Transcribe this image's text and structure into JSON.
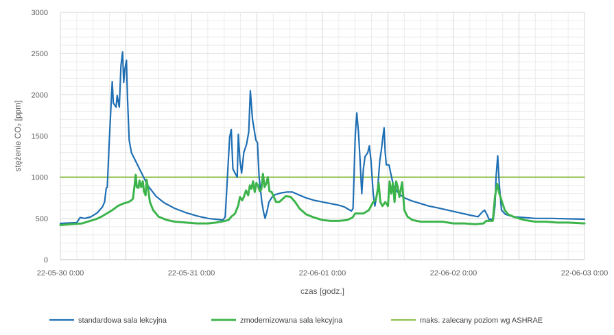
{
  "chart_data": {
    "type": "line",
    "xlabel": "czas [godz.]",
    "ylabel": "stężenie CO₂ [ppm]",
    "ylim": [
      0,
      3000
    ],
    "yticks": [
      0,
      500,
      1000,
      1500,
      2000,
      2500,
      3000
    ],
    "xlim": [
      0,
      96
    ],
    "x_unit": "hours since 22-05-30 0:00",
    "xticks": [
      {
        "x": 0,
        "label": "22-05-30 0:00"
      },
      {
        "x": 24,
        "label": "22-05-31 0:00"
      },
      {
        "x": 48,
        "label": "22-06-01 0:00"
      },
      {
        "x": 72,
        "label": "22-06-02 0:00"
      },
      {
        "x": 96,
        "label": "22-06-03 0:00"
      }
    ],
    "grid": true,
    "legend_position": "bottom",
    "series": [
      {
        "name": "standardowa sala lekcyjna",
        "color": "#1f6fb4",
        "points": [
          [
            0,
            440
          ],
          [
            3,
            450
          ],
          [
            3.6,
            510
          ],
          [
            4.5,
            500
          ],
          [
            5.6,
            520
          ],
          [
            6.8,
            570
          ],
          [
            7.7,
            640
          ],
          [
            8.1,
            700
          ],
          [
            8.4,
            870
          ],
          [
            8.6,
            880
          ],
          [
            8.9,
            1350
          ],
          [
            9.3,
            1900
          ],
          [
            9.5,
            2160
          ],
          [
            9.7,
            1900
          ],
          [
            10.2,
            1850
          ],
          [
            10.4,
            1990
          ],
          [
            10.8,
            1850
          ],
          [
            11.1,
            2350
          ],
          [
            11.4,
            2520
          ],
          [
            11.6,
            2150
          ],
          [
            11.8,
            2300
          ],
          [
            12.1,
            2420
          ],
          [
            12.3,
            1950
          ],
          [
            12.6,
            1450
          ],
          [
            13,
            1300
          ],
          [
            14.5,
            1100
          ],
          [
            16,
            900
          ],
          [
            17.5,
            770
          ],
          [
            19,
            690
          ],
          [
            21,
            620
          ],
          [
            23,
            570
          ],
          [
            25,
            530
          ],
          [
            27,
            500
          ],
          [
            29.8,
            480
          ],
          [
            30.2,
            520
          ],
          [
            31,
            1480
          ],
          [
            31.3,
            1580
          ],
          [
            31.6,
            1100
          ],
          [
            32,
            1050
          ],
          [
            32.4,
            1000
          ],
          [
            32.6,
            1520
          ],
          [
            32.9,
            1200
          ],
          [
            33.2,
            1050
          ],
          [
            33.6,
            1300
          ],
          [
            34.1,
            1400
          ],
          [
            34.5,
            1550
          ],
          [
            34.8,
            2050
          ],
          [
            35.2,
            1700
          ],
          [
            35.5,
            1580
          ],
          [
            35.8,
            1450
          ],
          [
            36.1,
            1420
          ],
          [
            36.4,
            1000
          ],
          [
            36.9,
            700
          ],
          [
            37.2,
            580
          ],
          [
            37.5,
            500
          ],
          [
            37.9,
            600
          ],
          [
            38.2,
            700
          ],
          [
            38.8,
            760
          ],
          [
            39.4,
            790
          ],
          [
            40.5,
            810
          ],
          [
            41.5,
            820
          ],
          [
            42.5,
            820
          ],
          [
            43.5,
            790
          ],
          [
            45,
            750
          ],
          [
            46.5,
            720
          ],
          [
            48,
            700
          ],
          [
            49.5,
            680
          ],
          [
            51,
            660
          ],
          [
            52,
            640
          ],
          [
            53.3,
            590
          ],
          [
            53.6,
            620
          ],
          [
            54,
            1500
          ],
          [
            54.3,
            1780
          ],
          [
            54.6,
            1550
          ],
          [
            54.9,
            1200
          ],
          [
            55.2,
            800
          ],
          [
            55.5,
            1100
          ],
          [
            55.8,
            1250
          ],
          [
            56.3,
            1300
          ],
          [
            56.6,
            1380
          ],
          [
            56.9,
            1200
          ],
          [
            57.3,
            800
          ],
          [
            57.6,
            650
          ],
          [
            57.9,
            760
          ],
          [
            58.1,
            850
          ],
          [
            58.5,
            1200
          ],
          [
            58.8,
            1330
          ],
          [
            59.1,
            1500
          ],
          [
            59.3,
            1600
          ],
          [
            59.5,
            1300
          ],
          [
            59.7,
            1150
          ],
          [
            60.2,
            1150
          ],
          [
            60.5,
            1050
          ],
          [
            61,
            900
          ],
          [
            62,
            800
          ],
          [
            63,
            750
          ],
          [
            64.5,
            710
          ],
          [
            66,
            680
          ],
          [
            67.5,
            650
          ],
          [
            69,
            630
          ],
          [
            71,
            600
          ],
          [
            73,
            570
          ],
          [
            75,
            540
          ],
          [
            76.5,
            520
          ],
          [
            77.3,
            580
          ],
          [
            77.7,
            600
          ],
          [
            78.2,
            540
          ],
          [
            78.5,
            490
          ],
          [
            79.3,
            490
          ],
          [
            79.6,
            650
          ],
          [
            79.8,
            1000
          ],
          [
            80.1,
            1260
          ],
          [
            80.4,
            900
          ],
          [
            80.8,
            600
          ],
          [
            81.5,
            550
          ],
          [
            83,
            520
          ],
          [
            85,
            510
          ],
          [
            87,
            500
          ],
          [
            90,
            500
          ],
          [
            96,
            490
          ]
        ]
      },
      {
        "name": "zmodernizowana sala lekcyjna",
        "color": "#3cb44b",
        "points": [
          [
            0,
            420
          ],
          [
            2,
            430
          ],
          [
            4,
            440
          ],
          [
            5,
            460
          ],
          [
            6.5,
            490
          ],
          [
            7.5,
            520
          ],
          [
            8.5,
            560
          ],
          [
            9.5,
            600
          ],
          [
            10.5,
            650
          ],
          [
            11.5,
            680
          ],
          [
            12.5,
            700
          ],
          [
            13,
            720
          ],
          [
            13.3,
            740
          ],
          [
            13.6,
            900
          ],
          [
            13.8,
            1030
          ],
          [
            14,
            880
          ],
          [
            14.3,
            870
          ],
          [
            14.5,
            960
          ],
          [
            14.8,
            880
          ],
          [
            15.1,
            950
          ],
          [
            15.3,
            830
          ],
          [
            15.6,
            780
          ],
          [
            15.8,
            970
          ],
          [
            16.1,
            850
          ],
          [
            16.4,
            700
          ],
          [
            17,
            600
          ],
          [
            18,
            520
          ],
          [
            19.5,
            480
          ],
          [
            21,
            460
          ],
          [
            23,
            450
          ],
          [
            25,
            440
          ],
          [
            27,
            440
          ],
          [
            28.5,
            450
          ],
          [
            29.5,
            460
          ],
          [
            30.8,
            480
          ],
          [
            31.3,
            520
          ],
          [
            32,
            560
          ],
          [
            32.6,
            660
          ],
          [
            32.9,
            760
          ],
          [
            33.3,
            720
          ],
          [
            33.6,
            760
          ],
          [
            34,
            840
          ],
          [
            34.4,
            780
          ],
          [
            34.7,
            900
          ],
          [
            35,
            860
          ],
          [
            35.3,
            950
          ],
          [
            35.6,
            820
          ],
          [
            35.9,
            930
          ],
          [
            36.2,
            900
          ],
          [
            36.5,
            830
          ],
          [
            36.8,
            850
          ],
          [
            37.1,
            1040
          ],
          [
            37.4,
            880
          ],
          [
            37.7,
            920
          ],
          [
            38,
            1000
          ],
          [
            38.3,
            830
          ],
          [
            38.7,
            820
          ],
          [
            39.1,
            760
          ],
          [
            39.5,
            700
          ],
          [
            40.1,
            700
          ],
          [
            40.6,
            730
          ],
          [
            41.3,
            770
          ],
          [
            42.2,
            760
          ],
          [
            43,
            700
          ],
          [
            43.8,
            620
          ],
          [
            45,
            550
          ],
          [
            46.5,
            510
          ],
          [
            48,
            480
          ],
          [
            49.5,
            470
          ],
          [
            51,
            470
          ],
          [
            52.5,
            480
          ],
          [
            53.5,
            510
          ],
          [
            54,
            560
          ],
          [
            55.5,
            560
          ],
          [
            56.5,
            600
          ],
          [
            57.3,
            700
          ],
          [
            57.8,
            730
          ],
          [
            58,
            800
          ],
          [
            58.3,
            930
          ],
          [
            58.6,
            700
          ],
          [
            59,
            650
          ],
          [
            59.5,
            700
          ],
          [
            60,
            650
          ],
          [
            60.3,
            950
          ],
          [
            60.6,
            800
          ],
          [
            60.9,
            930
          ],
          [
            61.2,
            700
          ],
          [
            61.5,
            950
          ],
          [
            61.8,
            880
          ],
          [
            62.1,
            760
          ],
          [
            62.6,
            940
          ],
          [
            63,
            600
          ],
          [
            63.6,
            520
          ],
          [
            64.5,
            480
          ],
          [
            66,
            460
          ],
          [
            68,
            460
          ],
          [
            70,
            460
          ],
          [
            72,
            440
          ],
          [
            74,
            440
          ],
          [
            76,
            430
          ],
          [
            77.5,
            440
          ],
          [
            78,
            470
          ],
          [
            79.2,
            470
          ],
          [
            79.6,
            760
          ],
          [
            80,
            920
          ],
          [
            80.4,
            800
          ],
          [
            80.9,
            700
          ],
          [
            81.4,
            600
          ],
          [
            82,
            550
          ],
          [
            83,
            520
          ],
          [
            85,
            480
          ],
          [
            87,
            460
          ],
          [
            89,
            460
          ],
          [
            91,
            450
          ],
          [
            93,
            450
          ],
          [
            96,
            440
          ]
        ]
      },
      {
        "name": "maks. zalecany poziom wg ASHRAE",
        "color": "#8fbf4d",
        "points": [
          [
            0,
            1000
          ],
          [
            96,
            1000
          ]
        ]
      }
    ]
  }
}
